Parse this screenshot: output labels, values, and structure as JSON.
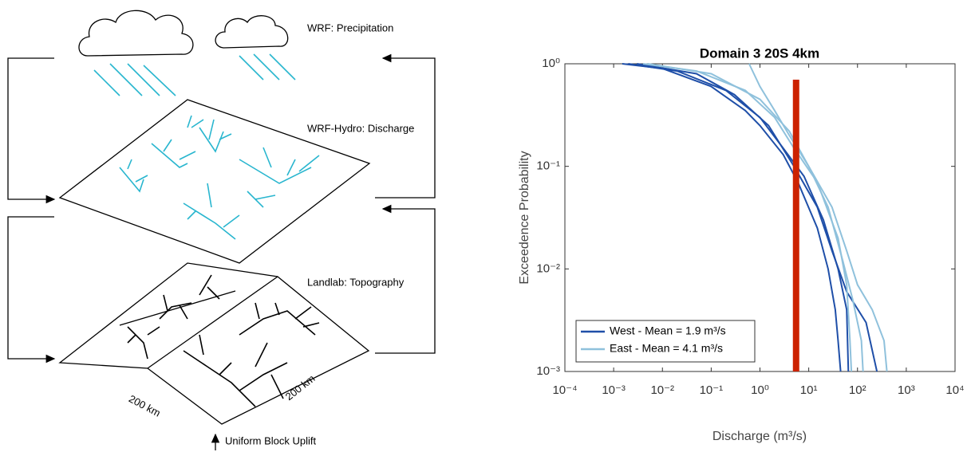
{
  "diagram": {
    "precipitation_label": "WRF: Precipitation",
    "discharge_label": "WRF-Hydro: Discharge",
    "topography_label": "Landlab: Topography",
    "width_label_1": "200 km",
    "width_label_2": "200 km",
    "uplift_label": "Uniform Block Uplift"
  },
  "chart_data": {
    "type": "line",
    "title": "Domain 3 20S 4km",
    "x_label": "Discharge (m³/s)",
    "y_label": "Exceedence Probability",
    "log_x": true,
    "log_y": true,
    "grid": false,
    "legend": "lower left",
    "xlim": [
      0.0001,
      10000
    ],
    "ylim": [
      0.001,
      1
    ],
    "xticks": [
      {
        "value": 0.0001,
        "label": "10⁻⁴"
      },
      {
        "value": 0.001,
        "label": "10⁻³"
      },
      {
        "value": 0.01,
        "label": "10⁻²"
      },
      {
        "value": 0.1,
        "label": "10⁻¹"
      },
      {
        "value": 1,
        "label": "10⁰"
      },
      {
        "value": 10,
        "label": "10¹"
      },
      {
        "value": 100,
        "label": "10²"
      },
      {
        "value": 1000,
        "label": "10³"
      },
      {
        "value": 10000,
        "label": "10⁴"
      }
    ],
    "yticks": [
      {
        "value": 0.001,
        "label": "10⁻³"
      },
      {
        "value": 0.01,
        "label": "10⁻²"
      },
      {
        "value": 0.1,
        "label": "10⁻¹"
      },
      {
        "value": 1,
        "label": "10⁰"
      }
    ],
    "series": [
      {
        "name": "West - Mean = 1.9 m³/s",
        "color": "#1f4fa8",
        "lines": [
          {
            "x": [
              0.0015,
              0.01,
              0.1,
              0.5,
              1,
              3,
              6,
              15,
              25,
              35,
              40,
              45
            ],
            "values": [
              1,
              0.9,
              0.6,
              0.35,
              0.25,
              0.13,
              0.07,
              0.025,
              0.01,
              0.004,
              0.002,
              0.001
            ]
          },
          {
            "x": [
              0.002,
              0.02,
              0.2,
              1,
              3,
              8,
              20,
              40,
              60,
              65
            ],
            "values": [
              1,
              0.85,
              0.55,
              0.3,
              0.15,
              0.08,
              0.03,
              0.01,
              0.004,
              0.001
            ]
          },
          {
            "x": [
              0.003,
              0.05,
              0.3,
              1.5,
              5,
              15,
              30,
              60,
              150,
              250
            ],
            "values": [
              1,
              0.8,
              0.5,
              0.25,
              0.1,
              0.04,
              0.015,
              0.006,
              0.003,
              0.001
            ]
          }
        ]
      },
      {
        "name": "East - Mean = 4.1 m³/s",
        "color": "#8fc1dc",
        "lines": [
          {
            "x": [
              0.6,
              1,
              2,
              4,
              10,
              30,
              60,
              100,
              200,
              350,
              400
            ],
            "values": [
              1,
              0.6,
              0.35,
              0.2,
              0.1,
              0.04,
              0.015,
              0.007,
              0.004,
              0.002,
              0.001
            ]
          },
          {
            "x": [
              0.004,
              0.05,
              0.5,
              2,
              5,
              15,
              40,
              60,
              70,
              75
            ],
            "values": [
              1,
              0.85,
              0.55,
              0.3,
              0.15,
              0.07,
              0.02,
              0.007,
              0.002,
              0.001
            ]
          },
          {
            "x": [
              0.005,
              0.1,
              1,
              4,
              10,
              25,
              50,
              80,
              120,
              130
            ],
            "values": [
              1,
              0.8,
              0.45,
              0.22,
              0.1,
              0.04,
              0.012,
              0.005,
              0.002,
              0.001
            ]
          }
        ]
      }
    ],
    "marker": {
      "x": 5.5,
      "y": [
        0.001,
        0.7
      ],
      "color": "#cc2200"
    }
  }
}
